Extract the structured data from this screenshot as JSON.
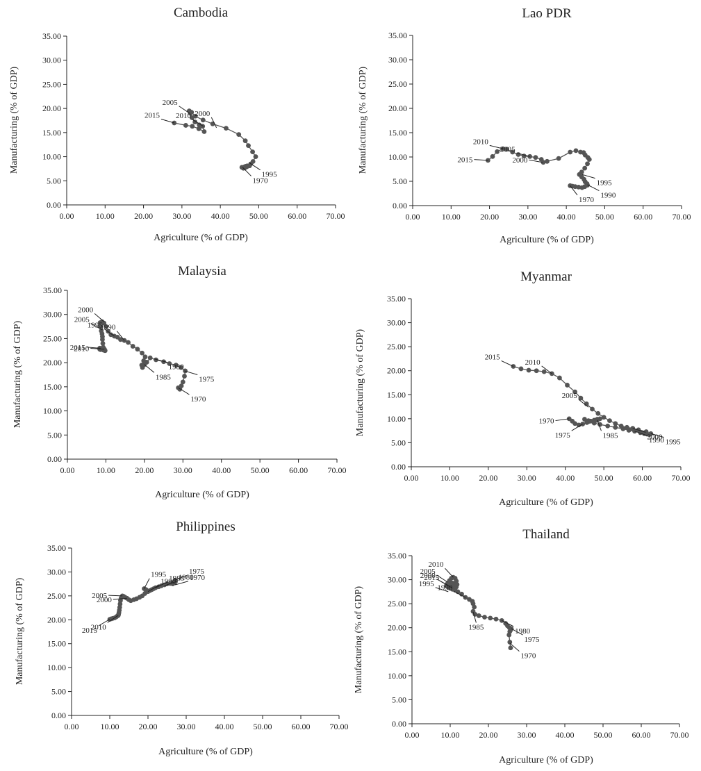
{
  "colors": {
    "series": "#555555",
    "axis": "#222222"
  },
  "chart_data": [
    {
      "type": "scatter",
      "title": "Cambodia",
      "xlabel": "Agriculture (% of GDP)",
      "ylabel": "Manufacturing (% of GDP)",
      "xlim": [
        0,
        70
      ],
      "ylim": [
        0,
        35
      ],
      "xticks": [
        "0.00",
        "10.00",
        "20.00",
        "30.00",
        "40.00",
        "50.00",
        "60.00",
        "70.00"
      ],
      "yticks": [
        "0.00",
        "5.00",
        "10.00",
        "15.00",
        "20.00",
        "25.00",
        "30.00",
        "35.00"
      ],
      "x": [
        45.6,
        46.0,
        46.3,
        46.4,
        46.6,
        47.0,
        46.9,
        47.6,
        47.9,
        48.5,
        49.2,
        48.4,
        47.3,
        46.5,
        44.8,
        41.5,
        38.0,
        35.5,
        33.5,
        32.5,
        31.9,
        32.2,
        32.6,
        33.4,
        34.5,
        35.4,
        35.8,
        34.4,
        32.7,
        31.0,
        28.0
      ],
      "y": [
        7.8,
        7.6,
        7.9,
        7.7,
        8.0,
        8.1,
        7.9,
        8.1,
        8.5,
        9.0,
        10.0,
        11.0,
        12.3,
        13.3,
        14.6,
        15.9,
        16.8,
        17.6,
        18.4,
        19.2,
        19.5,
        19.0,
        18.1,
        17.2,
        16.6,
        16.3,
        15.2,
        15.8,
        16.3,
        16.5,
        17.0
      ],
      "annotations": [
        {
          "text": "1970",
          "x": 45.8,
          "y": 7.8
        },
        {
          "text": "1995",
          "x": 47.6,
          "y": 8.7
        },
        {
          "text": "2000",
          "x": 39.0,
          "y": 16.0
        },
        {
          "text": "2005",
          "x": 32.0,
          "y": 19.0
        },
        {
          "text": "2010",
          "x": 35.6,
          "y": 16.3
        },
        {
          "text": "2015",
          "x": 28.0,
          "y": 17.0
        }
      ]
    },
    {
      "type": "scatter",
      "title": "Lao PDR",
      "xlabel": "Agriculture (% of GDP)",
      "ylabel": "Manufacturing (% of GDP)",
      "xlim": [
        0,
        70
      ],
      "ylim": [
        0,
        35
      ],
      "xticks": [
        "0.00",
        "10.00",
        "20.00",
        "30.00",
        "40.00",
        "50.00",
        "60.00",
        "70.00"
      ],
      "yticks": [
        "0.00",
        "5.00",
        "10.00",
        "15.00",
        "20.00",
        "25.00",
        "30.00",
        "35.00"
      ],
      "x": [
        41.0,
        41.6,
        42.3,
        43.2,
        44.1,
        44.8,
        45.5,
        45.4,
        44.9,
        44.6,
        44.0,
        43.4,
        44.0,
        44.8,
        45.5,
        46.0,
        45.6,
        44.9,
        44.5,
        43.7,
        42.5,
        41.0,
        38.0,
        35.0,
        34.0,
        33.5,
        32.0,
        30.5,
        29.0,
        27.5,
        26.0,
        24.5,
        23.5,
        22.0,
        20.8,
        19.6
      ],
      "y": [
        4.1,
        4.0,
        3.9,
        3.8,
        3.7,
        3.9,
        4.2,
        4.5,
        4.9,
        5.4,
        5.9,
        6.4,
        6.9,
        7.7,
        8.6,
        9.5,
        9.9,
        10.4,
        10.9,
        11.0,
        11.3,
        11.0,
        9.7,
        9.1,
        8.9,
        9.5,
        9.9,
        10.1,
        10.2,
        10.5,
        11.0,
        11.6,
        11.7,
        11.1,
        10.1,
        9.3
      ],
      "annotations": [
        {
          "text": "1970",
          "x": 41.0,
          "y": 4.1
        },
        {
          "text": "1990",
          "x": 45.5,
          "y": 4.3
        },
        {
          "text": "1995",
          "x": 44.1,
          "y": 6.4
        },
        {
          "text": "2000",
          "x": 33.8,
          "y": 8.9
        },
        {
          "text": "2005",
          "x": 30.5,
          "y": 10.1
        },
        {
          "text": "2010",
          "x": 23.5,
          "y": 11.7
        },
        {
          "text": "2015",
          "x": 19.6,
          "y": 9.3
        }
      ]
    },
    {
      "type": "scatter",
      "title": "Malaysia",
      "xlabel": "Agriculture (% of GDP)",
      "ylabel": "Manufacturing (% of GDP)",
      "xlim": [
        0,
        70
      ],
      "ylim": [
        0,
        35
      ],
      "xticks": [
        "0.00",
        "10.00",
        "20.00",
        "30.00",
        "40.00",
        "50.00",
        "60.00",
        "70.00"
      ],
      "yticks": [
        "0.00",
        "5.00",
        "10.00",
        "15.00",
        "20.00",
        "25.00",
        "30.00",
        "35.00"
      ],
      "x": [
        28.8,
        29.2,
        29.6,
        30.0,
        30.4,
        30.6,
        29.5,
        28.2,
        26.5,
        25.0,
        23.0,
        21.5,
        20.6,
        20.0,
        19.5,
        19.3,
        19.8,
        20.2,
        19.4,
        18.2,
        17.0,
        15.8,
        14.8,
        13.8,
        13.0,
        12.2,
        11.3,
        10.6,
        10.0,
        9.5,
        9.0,
        8.5,
        8.6,
        8.8,
        9.0,
        9.1,
        9.1,
        9.2,
        9.3,
        9.6,
        9.8,
        9.4,
        9.0,
        8.6,
        8.4,
        8.4
      ],
      "y": [
        14.8,
        14.5,
        15.2,
        16.0,
        17.2,
        18.3,
        19.0,
        19.5,
        19.8,
        20.2,
        20.6,
        21.0,
        20.1,
        19.6,
        19.0,
        19.5,
        20.4,
        21.2,
        22.0,
        22.8,
        23.4,
        24.2,
        24.6,
        24.8,
        25.3,
        25.5,
        25.8,
        26.5,
        27.5,
        28.2,
        28.5,
        28.3,
        27.5,
        26.6,
        26.0,
        25.4,
        24.8,
        24.0,
        23.2,
        22.8,
        22.5,
        22.6,
        22.8,
        22.7,
        22.8,
        23.0
      ],
      "annotations": [
        {
          "text": "1970",
          "x": 28.8,
          "y": 14.8
        },
        {
          "text": "1975",
          "x": 30.4,
          "y": 18.3
        },
        {
          "text": "1980",
          "x": 22.5,
          "y": 20.8
        },
        {
          "text": "1985",
          "x": 20.0,
          "y": 19.6
        },
        {
          "text": "1990",
          "x": 14.8,
          "y": 24.6
        },
        {
          "text": "1995",
          "x": 12.2,
          "y": 25.5
        },
        {
          "text": "2000",
          "x": 9.5,
          "y": 28.5
        },
        {
          "text": "2005",
          "x": 9.0,
          "y": 26.8
        },
        {
          "text": "2010",
          "x": 9.6,
          "y": 22.8
        },
        {
          "text": "2015",
          "x": 8.6,
          "y": 23.0
        }
      ]
    },
    {
      "type": "scatter",
      "title": "Myanmar",
      "xlabel": "Agriculture (% of GDP)",
      "ylabel": "Manufacturing (% of GDP)",
      "xlim": [
        0,
        70
      ],
      "ylim": [
        0,
        35
      ],
      "xticks": [
        "0.00",
        "10.00",
        "20.00",
        "30.00",
        "40.00",
        "50.00",
        "60.00",
        "70.00"
      ],
      "yticks": [
        "0.00",
        "5.00",
        "10.00",
        "15.00",
        "20.00",
        "25.00",
        "30.00",
        "35.00"
      ],
      "x": [
        41.0,
        41.8,
        42.5,
        43.5,
        44.5,
        45.6,
        46.6,
        47.5,
        48.3,
        49.0,
        48.3,
        47.3,
        46.0,
        45.0,
        46.0,
        47.5,
        49.0,
        51.0,
        53.0,
        55.0,
        56.5,
        58.0,
        59.5,
        60.5,
        61.2,
        61.8,
        62.2,
        61.0,
        59.0,
        57.5,
        56.0,
        54.5,
        53.0,
        51.5,
        50.0,
        48.5,
        47.0,
        45.5,
        44.0,
        42.5,
        40.5,
        38.5,
        36.5,
        34.5,
        32.5,
        30.5,
        28.5,
        26.5
      ],
      "y": [
        10.0,
        9.5,
        9.0,
        8.7,
        8.9,
        9.2,
        9.5,
        9.7,
        9.9,
        10.0,
        9.7,
        9.4,
        9.6,
        9.9,
        9.4,
        9.1,
        8.8,
        8.5,
        8.2,
        7.9,
        7.6,
        7.4,
        7.1,
        6.9,
        6.8,
        6.7,
        6.9,
        7.3,
        7.7,
        8.0,
        8.2,
        8.5,
        9.0,
        9.6,
        10.3,
        11.1,
        12.0,
        13.1,
        14.3,
        15.6,
        17.0,
        18.5,
        19.4,
        19.8,
        20.0,
        20.1,
        20.4,
        20.9
      ],
      "annotations": [
        {
          "text": "1970",
          "x": 41.0,
          "y": 10.0
        },
        {
          "text": "1975",
          "x": 44.5,
          "y": 8.9
        },
        {
          "text": "1985",
          "x": 48.3,
          "y": 9.7
        },
        {
          "text": "1990",
          "x": 58.0,
          "y": 7.4
        },
        {
          "text": "1995",
          "x": 62.2,
          "y": 6.9
        },
        {
          "text": "2000",
          "x": 57.5,
          "y": 8.0
        },
        {
          "text": "2005",
          "x": 46.0,
          "y": 12.4
        },
        {
          "text": "2010",
          "x": 36.5,
          "y": 19.4
        },
        {
          "text": "2015",
          "x": 26.5,
          "y": 20.9
        }
      ]
    },
    {
      "type": "scatter",
      "title": "Philippines",
      "xlabel": "Agriculture (% of GDP)",
      "ylabel": "Manufacturing (% of GDP)",
      "xlim": [
        0,
        70
      ],
      "ylim": [
        0,
        35
      ],
      "xticks": [
        "0.00",
        "10.00",
        "20.00",
        "30.00",
        "40.00",
        "50.00",
        "60.00",
        "70.00"
      ],
      "yticks": [
        "0.00",
        "5.00",
        "10.00",
        "15.00",
        "20.00",
        "25.00",
        "30.00",
        "35.00"
      ],
      "x": [
        26.5,
        26.8,
        27.0,
        27.1,
        27.2,
        27.0,
        26.5,
        25.8,
        25.0,
        24.3,
        23.5,
        22.8,
        22.0,
        21.5,
        21.0,
        20.5,
        20.0,
        19.5,
        19.0,
        19.4,
        20.0,
        19.2,
        18.5,
        17.8,
        17.0,
        16.3,
        15.5,
        15.0,
        14.5,
        14.0,
        13.6,
        13.3,
        13.0,
        12.8,
        12.7,
        12.6,
        12.5,
        12.4,
        12.3,
        12.2,
        12.0,
        11.7,
        11.3,
        10.8,
        10.4,
        10.0
      ],
      "y": [
        27.5,
        27.8,
        28.0,
        28.3,
        28.0,
        27.8,
        27.7,
        27.6,
        27.5,
        27.3,
        27.1,
        26.9,
        26.7,
        26.5,
        26.3,
        26.1,
        25.9,
        26.3,
        26.5,
        26.3,
        26.0,
        25.5,
        25.0,
        24.7,
        24.4,
        24.2,
        24.0,
        24.2,
        24.5,
        24.7,
        24.9,
        25.0,
        24.6,
        24.0,
        23.3,
        22.6,
        22.0,
        21.5,
        21.1,
        20.9,
        20.8,
        20.6,
        20.4,
        20.3,
        20.2,
        20.1
      ],
      "annotations": [
        {
          "text": "1970",
          "x": 27.1,
          "y": 27.3
        },
        {
          "text": "1975",
          "x": 27.1,
          "y": 28.3
        },
        {
          "text": "1980",
          "x": 24.3,
          "y": 27.1
        },
        {
          "text": "1985",
          "x": 22.0,
          "y": 26.7
        },
        {
          "text": "1990",
          "x": 20.0,
          "y": 25.9
        },
        {
          "text": "1995",
          "x": 19.0,
          "y": 26.5
        },
        {
          "text": "2000",
          "x": 14.5,
          "y": 24.5
        },
        {
          "text": "2005",
          "x": 13.3,
          "y": 25.0
        },
        {
          "text": "2010",
          "x": 12.2,
          "y": 20.9
        },
        {
          "text": "2015",
          "x": 10.0,
          "y": 20.1
        }
      ]
    },
    {
      "type": "scatter",
      "title": "Thailand",
      "xlabel": "Agriculture (% of GDP)",
      "ylabel": "Manufacturing (% of GDP)",
      "xlim": [
        0,
        70
      ],
      "ylim": [
        0,
        35
      ],
      "xticks": [
        "0.00",
        "10.00",
        "20.00",
        "30.00",
        "40.00",
        "50.00",
        "60.00",
        "70.00"
      ],
      "yticks": [
        "0.00",
        "5.00",
        "10.00",
        "15.00",
        "20.00",
        "25.00",
        "30.00",
        "35.00"
      ],
      "x": [
        25.8,
        25.6,
        25.4,
        25.6,
        25.8,
        26.0,
        25.5,
        25.0,
        24.5,
        23.5,
        22.0,
        20.5,
        19.0,
        17.5,
        16.5,
        16.0,
        16.3,
        16.0,
        15.8,
        15.0,
        14.0,
        13.0,
        12.0,
        11.3,
        10.6,
        10.0,
        9.5,
        9.2,
        9.0,
        9.3,
        9.8,
        10.3,
        10.8,
        11.3,
        11.6,
        11.8,
        11.6,
        11.0,
        10.5,
        10.2,
        10.0,
        9.8,
        10.2,
        10.6,
        11.0,
        10.5
      ],
      "y": [
        15.8,
        17.0,
        18.5,
        19.2,
        19.5,
        19.8,
        20.0,
        20.4,
        20.9,
        21.5,
        21.8,
        22.0,
        22.2,
        22.5,
        22.8,
        23.4,
        24.3,
        25.0,
        25.5,
        25.9,
        26.3,
        27.0,
        27.5,
        27.8,
        28.0,
        28.2,
        28.4,
        28.6,
        28.8,
        29.2,
        29.8,
        30.3,
        30.5,
        30.3,
        29.7,
        29.0,
        28.5,
        28.6,
        28.8,
        28.9,
        29.0,
        29.2,
        29.4,
        29.3,
        29.0,
        28.8
      ],
      "annotations": [
        {
          "text": "1970",
          "x": 25.6,
          "y": 16.8
        },
        {
          "text": "1975",
          "x": 26.0,
          "y": 19.8
        },
        {
          "text": "1980",
          "x": 23.5,
          "y": 21.5
        },
        {
          "text": "1985",
          "x": 16.0,
          "y": 23.3
        },
        {
          "text": "1990",
          "x": 14.0,
          "y": 26.3
        },
        {
          "text": "1995",
          "x": 9.5,
          "y": 27.5
        },
        {
          "text": "2000",
          "x": 9.5,
          "y": 28.8
        },
        {
          "text": "2005",
          "x": 9.3,
          "y": 29.5
        },
        {
          "text": "2010",
          "x": 10.8,
          "y": 30.5
        },
        {
          "text": "2015",
          "x": 10.5,
          "y": 28.3
        }
      ]
    }
  ]
}
